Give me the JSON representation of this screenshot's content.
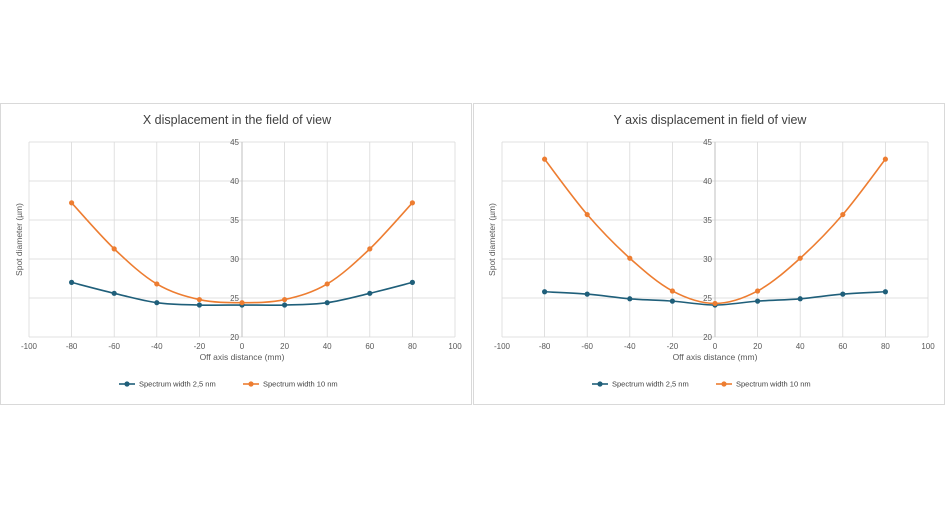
{
  "colors": {
    "series_a": "#1f5f7a",
    "series_b": "#ed7d31",
    "grid": "#d9d9d9",
    "text": "#595959"
  },
  "chart_data": [
    {
      "type": "line",
      "title": "X displacement in the field of view",
      "xlabel": "Off axis distance (mm)",
      "ylabel": "Spot diameter (µm)",
      "xlim": [
        -100,
        100
      ],
      "ylim": [
        20,
        45
      ],
      "xticks": [
        -100,
        -80,
        -60,
        -40,
        -20,
        0,
        20,
        40,
        60,
        80,
        100
      ],
      "yticks": [
        20,
        25,
        30,
        35,
        40,
        45
      ],
      "legend_position": "bottom",
      "series": [
        {
          "name": "Spectrum width 2,5 nm",
          "color": "#1f5f7a",
          "x": [
            -80,
            -60,
            -40,
            -20,
            0,
            20,
            40,
            60,
            80
          ],
          "y": [
            27.0,
            25.6,
            24.4,
            24.1,
            24.1,
            24.1,
            24.4,
            25.6,
            27.0
          ]
        },
        {
          "name": "Spectrum width 10 nm",
          "color": "#ed7d31",
          "x": [
            -80,
            -60,
            -40,
            -20,
            0,
            20,
            40,
            60,
            80
          ],
          "y": [
            37.2,
            31.3,
            26.8,
            24.8,
            24.4,
            24.8,
            26.8,
            31.3,
            37.2
          ]
        }
      ]
    },
    {
      "type": "line",
      "title": "Y axis displacement in field of view",
      "xlabel": "Off axis distance (mm)",
      "ylabel": "Spot diameter (µm)",
      "xlim": [
        -100,
        100
      ],
      "ylim": [
        20,
        45
      ],
      "xticks": [
        -100,
        -80,
        -60,
        -40,
        -20,
        0,
        20,
        40,
        60,
        80,
        100
      ],
      "yticks": [
        20,
        25,
        30,
        35,
        40,
        45
      ],
      "legend_position": "bottom",
      "series": [
        {
          "name": "Spectrum width 2,5 nm",
          "color": "#1f5f7a",
          "x": [
            -80,
            -60,
            -40,
            -20,
            0,
            20,
            40,
            60,
            80
          ],
          "y": [
            25.8,
            25.5,
            24.9,
            24.6,
            24.1,
            24.6,
            24.9,
            25.5,
            25.8
          ]
        },
        {
          "name": "Spectrum width 10 nm",
          "color": "#ed7d31",
          "x": [
            -80,
            -60,
            -40,
            -20,
            0,
            20,
            40,
            60,
            80
          ],
          "y": [
            42.8,
            35.7,
            30.1,
            25.9,
            24.3,
            25.9,
            30.1,
            35.7,
            42.8
          ]
        }
      ]
    }
  ]
}
